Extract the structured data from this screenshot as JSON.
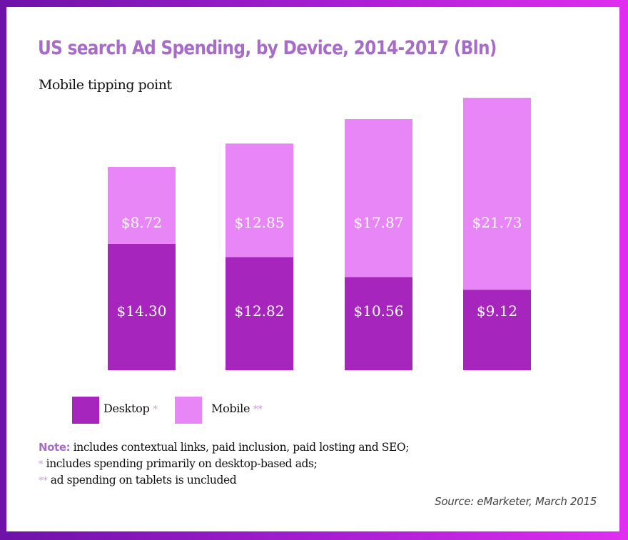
{
  "title": "US search Ad Spending, by Device, 2014-2017 (Bln)",
  "subtitle": "Mobile tipping point",
  "chart_data": {
    "type": "bar",
    "stacked": true,
    "title": "US search Ad Spending, by Device, 2014-2017 (Bln)",
    "subtitle": "Mobile tipping point",
    "grid": false,
    "legend_position": "bottom-left",
    "series": [
      {
        "name": "Desktop",
        "marker": "*",
        "color": "#a626bd",
        "values": [
          14.3,
          12.82,
          10.56,
          9.12
        ],
        "labels": [
          "$14.30",
          "$12.82",
          "$10.56",
          "$9.12"
        ]
      },
      {
        "name": "Mobile",
        "marker": "**",
        "color": "#e986f7",
        "values": [
          8.72,
          12.85,
          17.87,
          21.73
        ],
        "labels": [
          "$8.72",
          "$12.85",
          "$17.87",
          "$21.73"
        ]
      }
    ]
  },
  "notes": {
    "note_label": "Note:",
    "note_text": " includes contextual links, paid inclusion, paid losting and SEO;",
    "star1": "*",
    "line2": " includes spending primarily on desktop-based ads;",
    "star2": "**",
    "line3": " ad spending on tablets is uncluded"
  },
  "source": "Source: eMarketer, March 2015"
}
